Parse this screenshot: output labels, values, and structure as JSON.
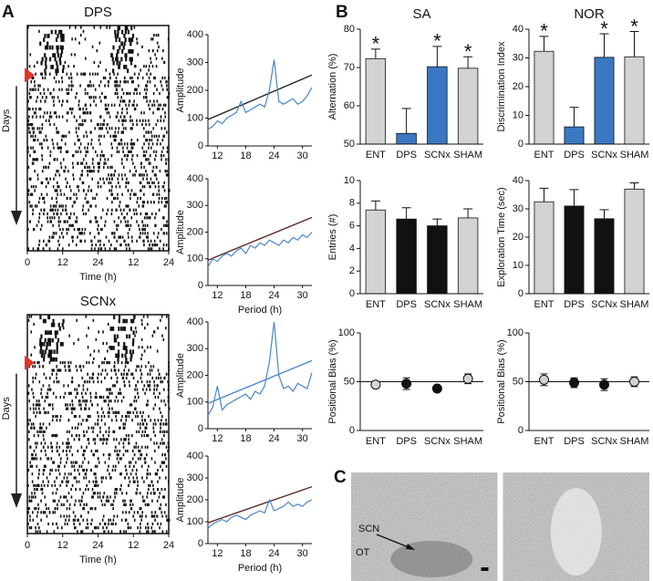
{
  "panel_labels": [
    "A",
    "B",
    "C"
  ],
  "chart_data": [
    {
      "type": "actogram",
      "title": "DPS",
      "xlabel": "Time (h)",
      "ylabel": "Days",
      "xlim": [
        0,
        48
      ],
      "xticks": [
        0,
        12,
        24,
        {
          "value": 36,
          "label": "12"
        },
        {
          "value": 48,
          "label": "24"
        }
      ]
    },
    {
      "type": "periodogram",
      "ylabel": "Amplitude",
      "xlim": [
        10,
        32
      ],
      "xticks": [
        12,
        18,
        24,
        30
      ],
      "ylim": [
        0,
        400
      ],
      "yticks": [
        0,
        100,
        200,
        300,
        400
      ],
      "x": [
        10,
        11,
        12,
        13,
        14,
        15,
        16,
        17,
        18,
        19,
        20,
        21,
        22,
        23,
        24,
        25,
        26,
        27,
        28,
        29,
        30,
        31,
        32
      ],
      "series": [
        {
          "color": "#4a86c8",
          "values": [
            60,
            70,
            90,
            80,
            100,
            110,
            120,
            160,
            120,
            130,
            140,
            150,
            140,
            200,
            310,
            160,
            150,
            160,
            170,
            150,
            160,
            180,
            210
          ]
        }
      ],
      "threshold": {
        "x": [
          10,
          32
        ],
        "values": [
          95,
          255
        ],
        "color": "#222222"
      }
    },
    {
      "type": "periodogram",
      "ylabel": "Amplitude",
      "xlabel": "Period (h)",
      "xlim": [
        10,
        32
      ],
      "xticks": [
        12,
        18,
        24,
        30
      ],
      "ylim": [
        0,
        400
      ],
      "yticks": [
        0,
        100,
        200,
        300,
        400
      ],
      "x": [
        10,
        11,
        12,
        13,
        14,
        15,
        16,
        17,
        18,
        19,
        20,
        21,
        22,
        23,
        24,
        25,
        26,
        27,
        28,
        29,
        30,
        31,
        32
      ],
      "series": [
        {
          "color": "#4a86c8",
          "values": [
            70,
            100,
            90,
            110,
            120,
            110,
            130,
            140,
            120,
            150,
            140,
            160,
            150,
            170,
            160,
            150,
            170,
            160,
            180,
            170,
            190,
            180,
            200
          ]
        }
      ],
      "threshold": {
        "x": [
          10,
          32
        ],
        "values": [
          95,
          255
        ],
        "color": "#5a2a22"
      }
    },
    {
      "type": "actogram",
      "title": "SCNx",
      "xlabel": "Time (h)",
      "ylabel": "Days",
      "xlim": [
        0,
        48
      ],
      "xticks": [
        0,
        12,
        24,
        {
          "value": 36,
          "label": "12"
        },
        {
          "value": 48,
          "label": "24"
        }
      ]
    },
    {
      "type": "periodogram",
      "ylabel": "Amplitude",
      "xlim": [
        10,
        32
      ],
      "xticks": [
        12,
        18,
        24,
        30
      ],
      "ylim": [
        0,
        400
      ],
      "yticks": [
        0,
        100,
        200,
        300,
        400
      ],
      "x": [
        10,
        11,
        12,
        13,
        14,
        15,
        16,
        17,
        18,
        19,
        20,
        21,
        22,
        23,
        24,
        25,
        26,
        27,
        28,
        29,
        30,
        31,
        32
      ],
      "series": [
        {
          "color": "#4a86c8",
          "values": [
            50,
            80,
            160,
            70,
            90,
            100,
            110,
            120,
            130,
            110,
            140,
            130,
            160,
            250,
            400,
            200,
            150,
            160,
            140,
            170,
            160,
            150,
            210
          ]
        }
      ],
      "threshold": {
        "x": [
          10,
          32
        ],
        "values": [
          95,
          255
        ],
        "color": "#4a86c8"
      }
    },
    {
      "type": "periodogram",
      "ylabel": "Amplitude",
      "xlabel": "Period (h)",
      "xlim": [
        10,
        32
      ],
      "xticks": [
        12,
        18,
        24,
        30
      ],
      "ylim": [
        0,
        400
      ],
      "yticks": [
        0,
        100,
        200,
        300,
        400
      ],
      "x": [
        10,
        11,
        12,
        13,
        14,
        15,
        16,
        17,
        18,
        19,
        20,
        21,
        22,
        23,
        24,
        25,
        26,
        27,
        28,
        29,
        30,
        31,
        32
      ],
      "series": [
        {
          "color": "#4a86c8",
          "values": [
            70,
            90,
            100,
            110,
            100,
            120,
            130,
            120,
            110,
            130,
            140,
            150,
            140,
            200,
            150,
            160,
            170,
            190,
            170,
            180,
            170,
            190,
            200
          ]
        }
      ],
      "threshold": {
        "x": [
          10,
          32
        ],
        "values": [
          95,
          260
        ],
        "color": "#5a2a22"
      }
    },
    {
      "type": "bar",
      "title": "SA",
      "ylabel": "Alternation (%)",
      "categories": [
        "ENT",
        "DPS",
        "SCNx",
        "SHAM"
      ],
      "values": [
        72.3,
        52.8,
        70.2,
        69.8
      ],
      "errors": [
        2.5,
        6.5,
        5.3,
        3.0
      ],
      "colors": [
        "#d3d3d3",
        "#3a78c2",
        "#3a78c2",
        "#d3d3d3"
      ],
      "ylim": [
        50,
        80
      ],
      "yticks": [
        50,
        60,
        70,
        80
      ],
      "annotations": [
        {
          "category": 0,
          "text": "*"
        },
        {
          "category": 2,
          "text": "*"
        },
        {
          "category": 3,
          "text": "*"
        }
      ]
    },
    {
      "type": "bar",
      "title": "NOR",
      "ylabel": "Discrimination Index",
      "categories": [
        "ENT",
        "DPS",
        "SCNx",
        "SHAM"
      ],
      "values": [
        32.3,
        6.0,
        30.2,
        30.4
      ],
      "errors": [
        5.2,
        6.8,
        8.2,
        8.8
      ],
      "colors": [
        "#d3d3d3",
        "#3a78c2",
        "#3a78c2",
        "#d3d3d3"
      ],
      "ylim": [
        0,
        40
      ],
      "yticks": [
        0,
        10,
        20,
        30,
        40
      ],
      "annotations": [
        {
          "category": 0,
          "text": "*"
        },
        {
          "category": 2,
          "text": "*"
        },
        {
          "category": 3,
          "text": "*"
        }
      ]
    },
    {
      "type": "bar",
      "ylabel": "Entries (#)",
      "categories": [
        "ENT",
        "DPS",
        "SCNx",
        "SHAM"
      ],
      "values": [
        7.4,
        6.6,
        6.0,
        6.7
      ],
      "errors": [
        0.8,
        1.0,
        0.6,
        0.8
      ],
      "colors": [
        "#d3d3d3",
        "#111111",
        "#111111",
        "#d3d3d3"
      ],
      "ylim": [
        0,
        10
      ],
      "yticks": [
        0,
        2,
        4,
        6,
        8,
        10
      ]
    },
    {
      "type": "bar",
      "ylabel": "Exploration Time (sec)",
      "categories": [
        "ENT",
        "DPS",
        "SCNx",
        "SHAM"
      ],
      "values": [
        32.5,
        31.0,
        26.5,
        37.0
      ],
      "errors": [
        4.8,
        5.8,
        3.2,
        2.2
      ],
      "colors": [
        "#d3d3d3",
        "#111111",
        "#111111",
        "#d3d3d3"
      ],
      "ylim": [
        0,
        40
      ],
      "yticks": [
        0,
        10,
        20,
        30,
        40
      ]
    },
    {
      "type": "dot",
      "ylabel": "Positional Bias (%)",
      "categories": [
        "ENT",
        "DPS",
        "SCNx",
        "SHAM"
      ],
      "values": [
        47,
        48,
        43,
        53
      ],
      "errors": [
        2,
        6,
        2,
        5
      ],
      "colors": [
        "#d3d3d3",
        "#111111",
        "#111111",
        "#d3d3d3"
      ],
      "ylim": [
        0,
        100
      ],
      "yticks": [
        0,
        50,
        100
      ],
      "reference": 50
    },
    {
      "type": "dot",
      "ylabel": "Positional Bias (%)",
      "categories": [
        "ENT",
        "DPS",
        "SCNx",
        "SHAM"
      ],
      "values": [
        52,
        49,
        47,
        50
      ],
      "errors": [
        6,
        5,
        6,
        5
      ],
      "colors": [
        "#d3d3d3",
        "#111111",
        "#111111",
        "#d3d3d3"
      ],
      "ylim": [
        0,
        100
      ],
      "yticks": [
        0,
        50,
        100
      ],
      "reference": 50
    },
    {
      "type": "micrograph",
      "labels": [
        "SCN",
        "OT"
      ]
    }
  ]
}
